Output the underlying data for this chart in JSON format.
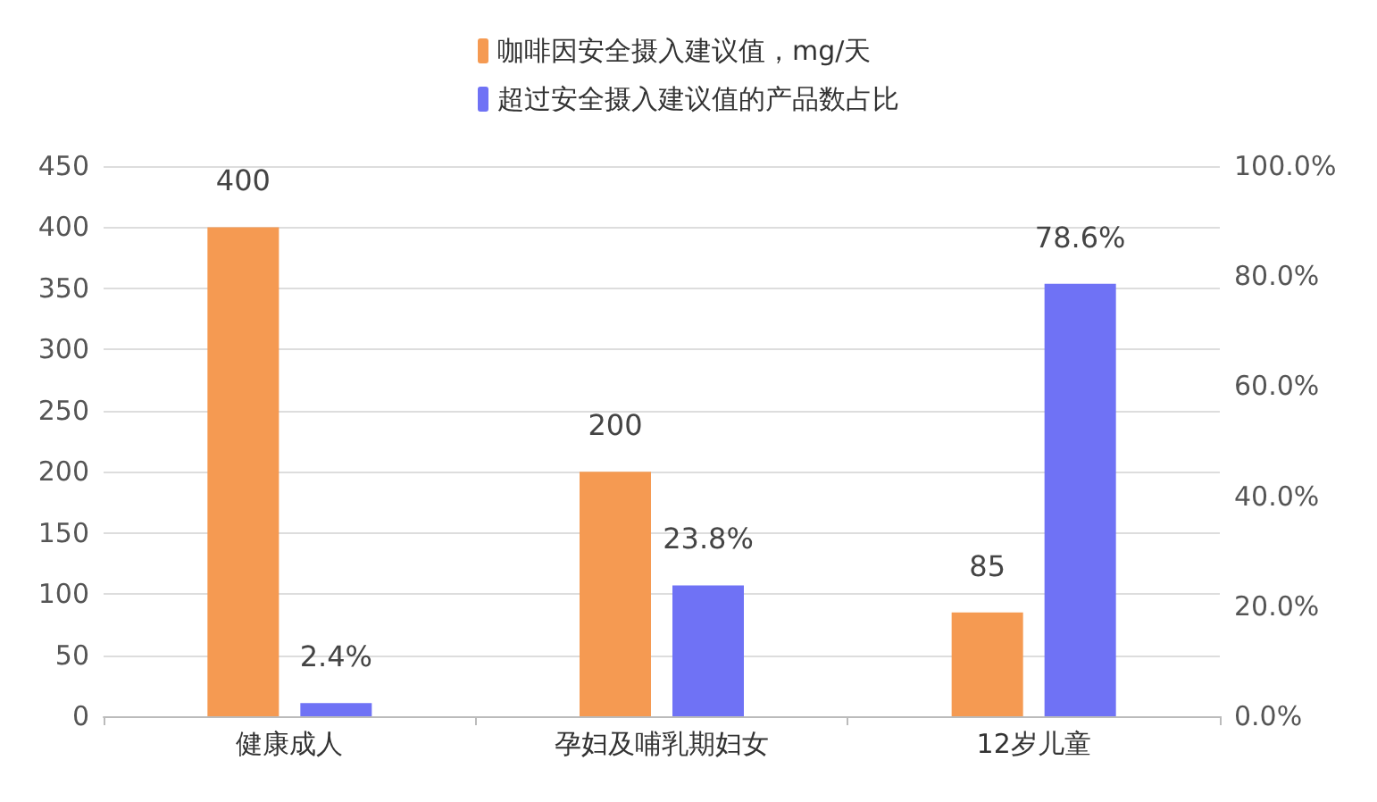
{
  "chart_data": {
    "type": "bar",
    "categories": [
      "健康成人",
      "孕妇及哺乳期妇女",
      "12岁儿童"
    ],
    "series": [
      {
        "name": "咖啡因安全摄入建议值，mg/天",
        "color": "#f59a52",
        "values": [
          400,
          200,
          85
        ],
        "value_labels": [
          "400",
          "200",
          "85"
        ]
      },
      {
        "name": "超过安全摄入建议值的产品数占比",
        "color": "#6f72f5",
        "values": [
          2.4,
          23.8,
          78.6
        ],
        "axis": "y2",
        "value_labels": [
          "2.4%",
          "23.8%",
          "78.6%"
        ]
      }
    ],
    "ylim": [
      0,
      450
    ],
    "yticks": [
      0,
      50,
      100,
      150,
      200,
      250,
      300,
      350,
      400,
      450
    ],
    "y2lim": [
      0,
      100
    ],
    "y2ticks": [
      {
        "value": 0,
        "label": "0.0%"
      },
      {
        "value": 20,
        "label": "20.0%"
      },
      {
        "value": 40,
        "label": "40.0%"
      },
      {
        "value": 60,
        "label": "60.0%"
      },
      {
        "value": 80,
        "label": "80.0%"
      },
      {
        "value": 100,
        "label": "100.0%"
      }
    ],
    "grid": "y",
    "legend": "top"
  }
}
